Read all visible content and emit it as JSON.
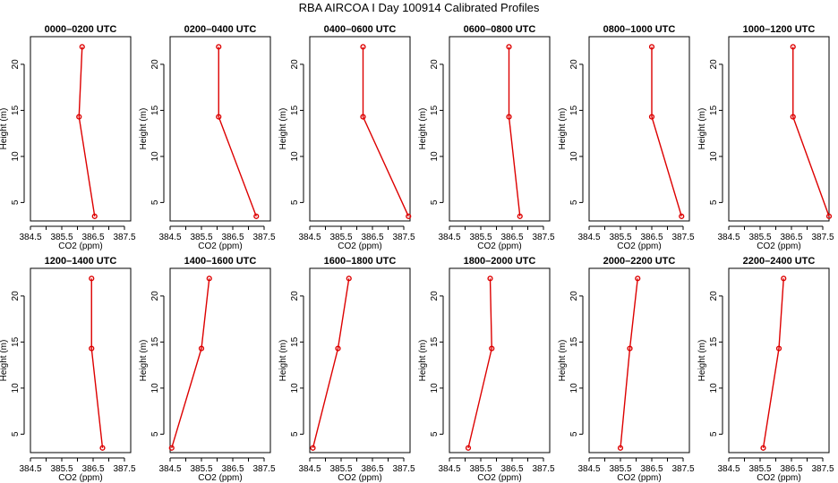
{
  "page": {
    "title": "RBA AIRCOA I  Day 100914  Calibrated Profiles"
  },
  "chart_data": {
    "type": "line",
    "xlabel": "CO2 (ppm)",
    "ylabel": "Height (m)",
    "xlim": [
      384.5,
      387.7
    ],
    "ylim": [
      3.0,
      23.0
    ],
    "x_ticks": [
      "384.5",
      "385.5",
      "386.5",
      "387.5"
    ],
    "x_minor_ticks": [
      385.0,
      386.0,
      387.0
    ],
    "y_ticks": [
      "5",
      "10",
      "15",
      "20"
    ],
    "heights": [
      3.5,
      14.3,
      21.9
    ],
    "series_color": "#dd0000",
    "panels": [
      {
        "title": "0000–0200 UTC",
        "values": [
          386.55,
          386.05,
          386.15
        ]
      },
      {
        "title": "0200–0400 UTC",
        "values": [
          387.25,
          386.05,
          386.05
        ]
      },
      {
        "title": "0400–0600 UTC",
        "values": [
          387.65,
          386.2,
          386.2
        ]
      },
      {
        "title": "0600–0800 UTC",
        "values": [
          386.75,
          386.4,
          386.4
        ]
      },
      {
        "title": "0800–1000 UTC",
        "values": [
          387.45,
          386.5,
          386.5
        ]
      },
      {
        "title": "1000–1200 UTC",
        "values": [
          387.7,
          386.55,
          386.55
        ]
      },
      {
        "title": "1200–1400 UTC",
        "values": [
          386.8,
          386.45,
          386.45
        ]
      },
      {
        "title": "1400–1600 UTC",
        "values": [
          384.55,
          385.5,
          385.75
        ]
      },
      {
        "title": "1600–1800 UTC",
        "values": [
          384.6,
          385.4,
          385.75
        ]
      },
      {
        "title": "1800–2000 UTC",
        "values": [
          385.1,
          385.85,
          385.8
        ]
      },
      {
        "title": "2000–2200 UTC",
        "values": [
          385.5,
          385.8,
          386.05
        ]
      },
      {
        "title": "2200–2400 UTC",
        "values": [
          385.6,
          386.1,
          386.25
        ]
      }
    ]
  }
}
